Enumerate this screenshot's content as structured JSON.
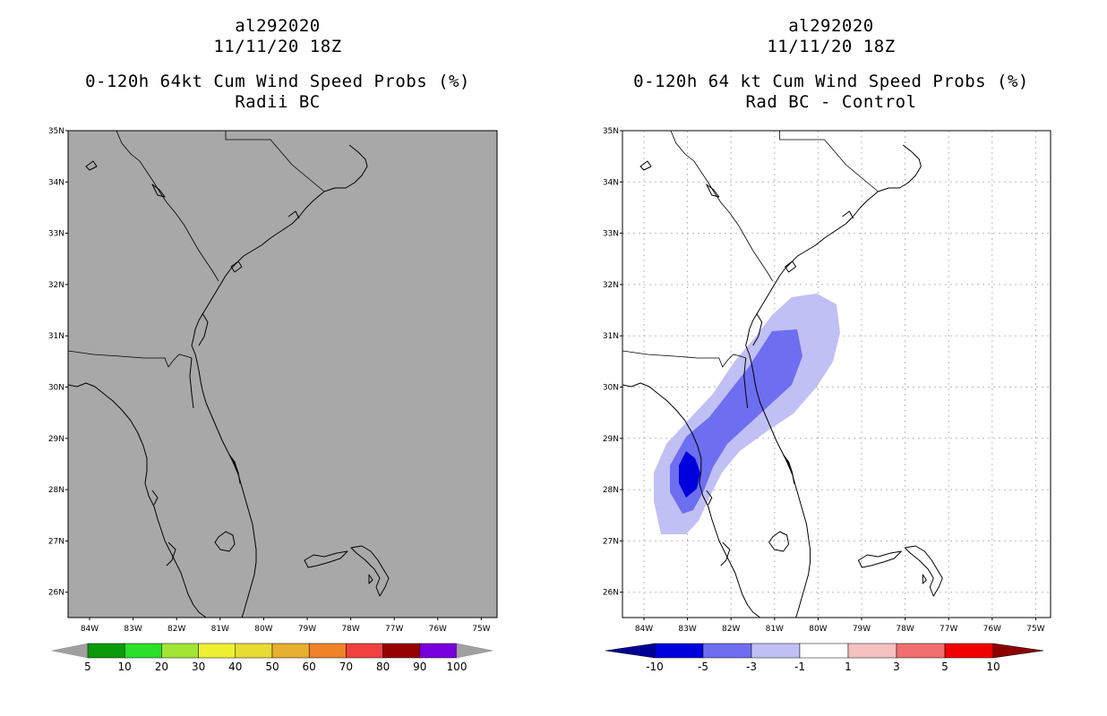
{
  "left_panel": {
    "storm_id": "al292020",
    "datetime": "11/11/20 18Z",
    "product": "0-120h 64kt Cum Wind Speed Probs (%)",
    "variant": "Radii BC",
    "lat_labels": [
      "35N",
      "34N",
      "33N",
      "32N",
      "31N",
      "30N",
      "29N",
      "28N",
      "27N",
      "26N"
    ],
    "lon_labels": [
      "84W",
      "83W",
      "82W",
      "81W",
      "80W",
      "79W",
      "78W",
      "77W",
      "76W",
      "75W"
    ],
    "colorbar": {
      "labels": [
        "5",
        "10",
        "20",
        "30",
        "40",
        "50",
        "60",
        "70",
        "80",
        "90",
        "100"
      ],
      "colors": [
        "#0a9a0a",
        "#28e128",
        "#a0e632",
        "#f0f032",
        "#e6dc32",
        "#e6af2d",
        "#f08228",
        "#f04040",
        "#960000",
        "#7800dc"
      ],
      "end_color": "#a0a0a0"
    },
    "field_color": "#a8a8a8"
  },
  "right_panel": {
    "storm_id": "al292020",
    "datetime": "11/11/20 18Z",
    "product": "0-120h 64 kt Cum Wind Speed Probs (%)",
    "variant": "Rad BC - Control",
    "lat_labels": [
      "35N",
      "34N",
      "33N",
      "32N",
      "31N",
      "30N",
      "29N",
      "28N",
      "27N",
      "26N"
    ],
    "lon_labels": [
      "84W",
      "83W",
      "82W",
      "81W",
      "80W",
      "79W",
      "78W",
      "77W",
      "76W",
      "75W"
    ],
    "colorbar": {
      "labels": [
        "-10",
        "-5",
        "-3",
        "-1",
        "1",
        "3",
        "5",
        "10"
      ],
      "colors": [
        "#0000dc",
        "#6e6ef0",
        "#c0c0f5",
        "#ffffff",
        "#f5c0c0",
        "#f07070",
        "#f00000"
      ],
      "end_low": "#000096",
      "end_high": "#8c0000"
    },
    "shading": {
      "light_color": "#c0c0f5",
      "mid_color": "#6e6ef0",
      "dark_color": "#0000dc"
    }
  }
}
